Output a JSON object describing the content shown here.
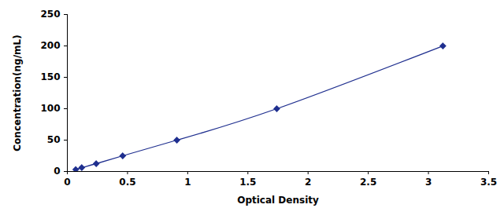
{
  "chart_data": {
    "type": "line",
    "marker": "diamond",
    "color": "#1f2f8f",
    "x": [
      0.07,
      0.12,
      0.24,
      0.46,
      0.91,
      1.74,
      3.12
    ],
    "values": [
      3.125,
      6.25,
      12.5,
      25,
      50,
      100,
      200
    ],
    "xlabel": "Optical Density",
    "ylabel": "Concentration(ng/mL)",
    "xlim": [
      0,
      3.5
    ],
    "xticks": [
      0,
      0.5,
      1,
      1.5,
      2,
      2.5,
      3,
      3.5
    ],
    "ylim": [
      0,
      250
    ],
    "yticks": [
      0,
      50,
      100,
      150,
      200,
      250
    ],
    "grid": false
  }
}
